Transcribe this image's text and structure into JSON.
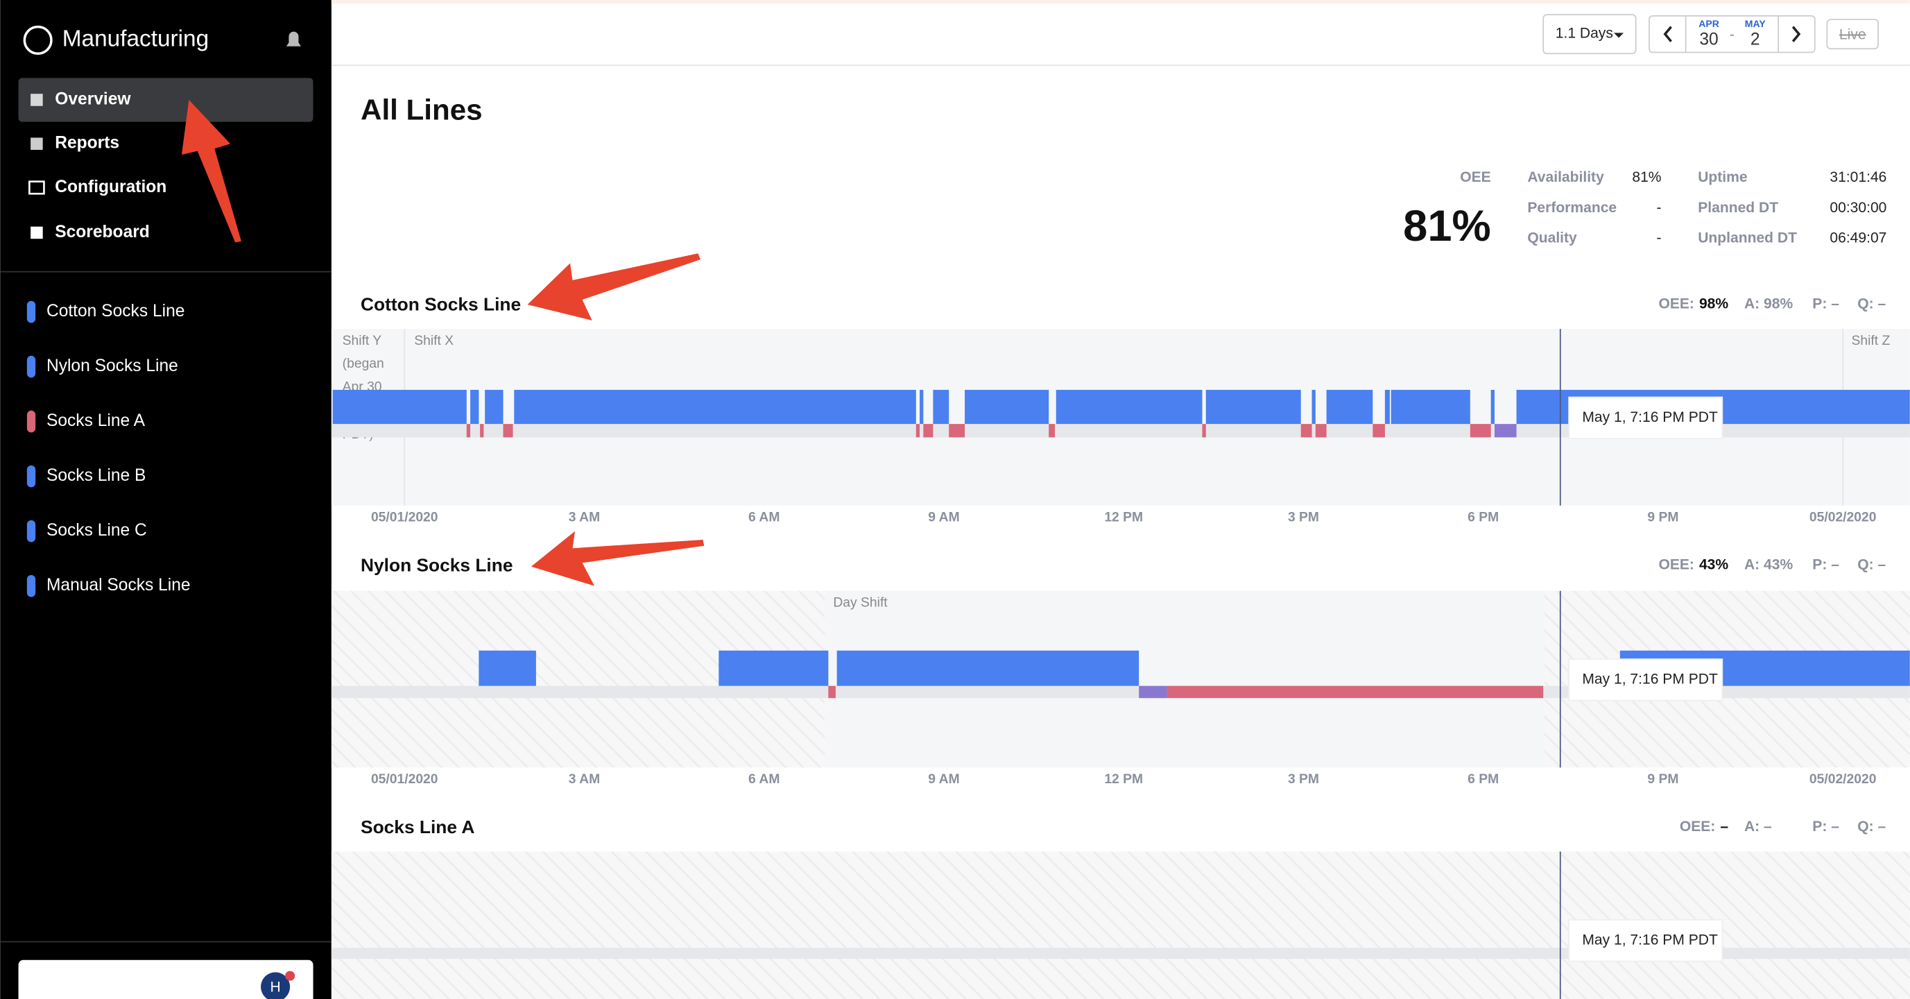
{
  "sidebar": {
    "title": "Manufacturing",
    "nav": [
      "Overview",
      "Reports",
      "Configuration",
      "Scoreboard"
    ],
    "lines": [
      "Cotton Socks Line",
      "Nylon Socks Line",
      "Socks Line A",
      "Socks Line B",
      "Socks Line C",
      "Manual Socks Line"
    ],
    "avatar": "H"
  },
  "toolbar": {
    "range": "1.1 Days",
    "from_month": "APR",
    "from_day": "30",
    "separator": "-",
    "to_month": "MAY",
    "to_day": "2",
    "live": "Live"
  },
  "summary": {
    "title": "All Lines",
    "oee_label": "OEE",
    "oee_value": "81%",
    "stats": [
      {
        "label": "Availability",
        "value": "81%"
      },
      {
        "label": "Performance",
        "value": "-"
      },
      {
        "label": "Quality",
        "value": "-"
      }
    ],
    "times": [
      {
        "label": "Uptime",
        "value": "31:01:46"
      },
      {
        "label": "Planned DT",
        "value": "00:30:00"
      },
      {
        "label": "Unplanned DT",
        "value": "06:49:07"
      }
    ]
  },
  "axis_labels": [
    "05/01/2020",
    "3 AM",
    "6 AM",
    "9 AM",
    "12 PM",
    "3 PM",
    "6 PM",
    "9 PM",
    "05/02/2020"
  ],
  "tooltip": "May 1, 7:16 PM PDT",
  "lines": [
    {
      "name": "Cotton Socks Line",
      "oee_label": "OEE:",
      "oee": "98%",
      "a": "A: 98%",
      "p": "P: –",
      "q": "Q: –",
      "shift_y": [
        "Shift Y",
        "(began",
        "Apr 30",
        "PDT)"
      ],
      "shift_x": "Shift X",
      "shift_z": "Shift Z"
    },
    {
      "name": "Nylon Socks Line",
      "oee_label": "OEE:",
      "oee": "43%",
      "a": "A: 43%",
      "p": "P: –",
      "q": "Q: –",
      "shift": "Day Shift"
    },
    {
      "name": "Socks Line A",
      "oee_label": "OEE:",
      "oee": "–",
      "a": "A: –",
      "p": "P: –",
      "q": "Q: –"
    }
  ]
}
